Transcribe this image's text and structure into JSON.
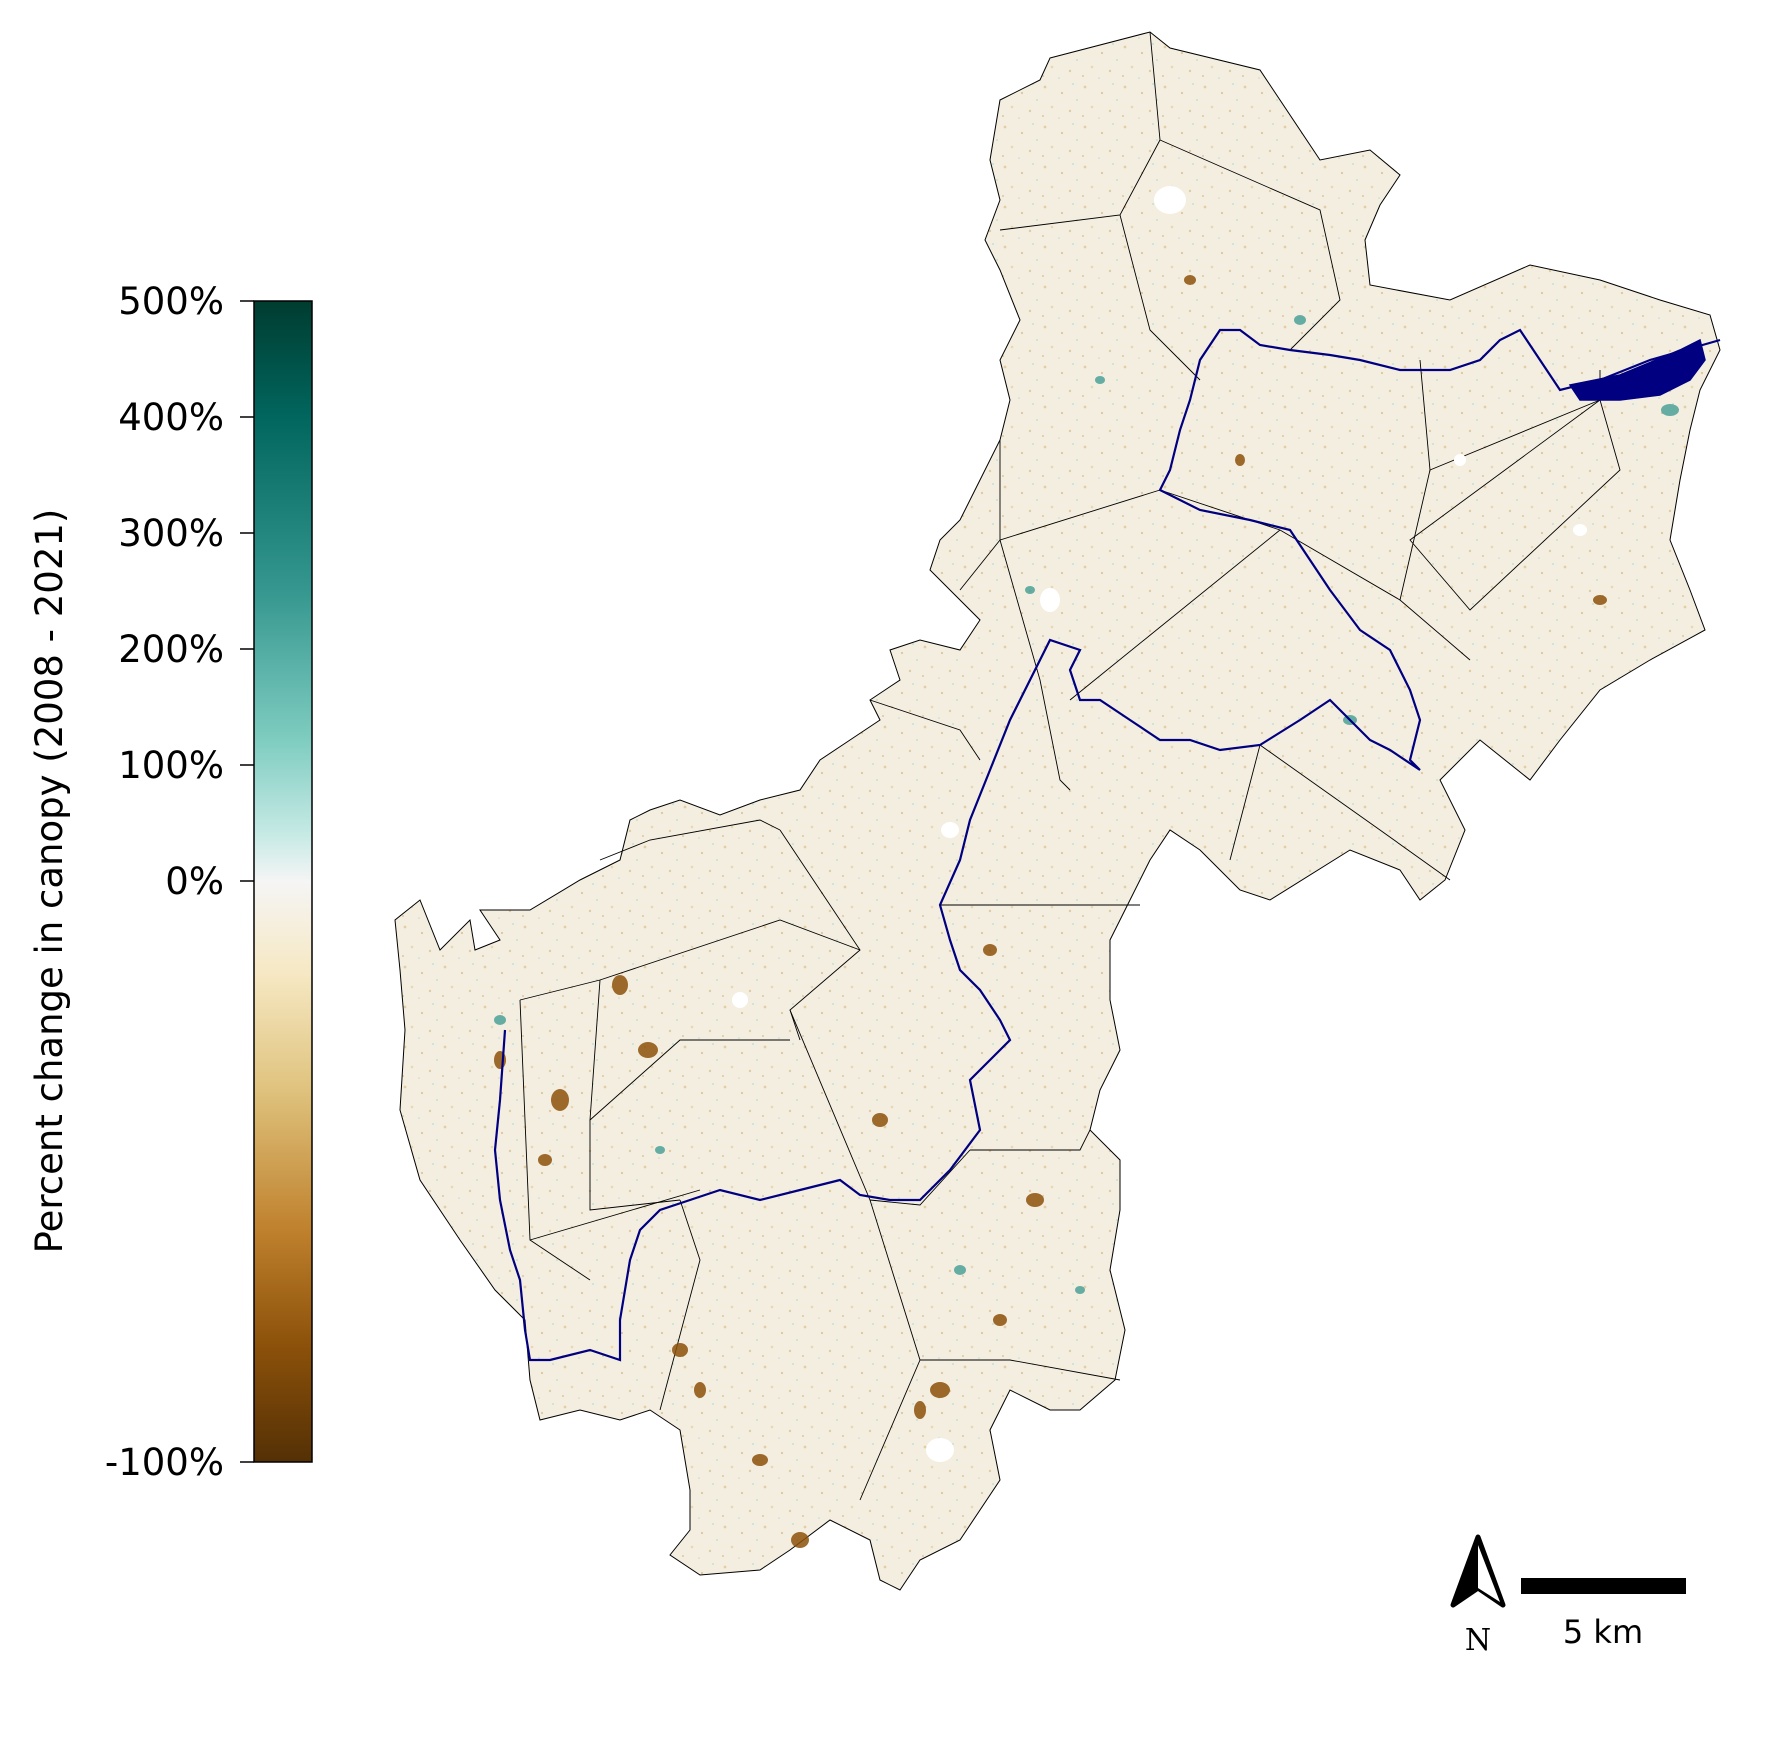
{
  "colorbar": {
    "title": "Percent change in canopy (2008 - 2021)",
    "ticks": [
      {
        "value": 500,
        "label": "500%"
      },
      {
        "value": 400,
        "label": "400%"
      },
      {
        "value": 300,
        "label": "300%"
      },
      {
        "value": 200,
        "label": "200%"
      },
      {
        "value": 100,
        "label": "100%"
      },
      {
        "value": 0,
        "label": "0%"
      },
      {
        "value": -100,
        "label": "-100%"
      }
    ],
    "range": [
      -100,
      500
    ],
    "colors": {
      "top": "#023c30",
      "upper": "#35978f",
      "light": "#c7eae5",
      "mid": "#f5f5f5",
      "tan": "#dfc27d",
      "brown": "#bf812d",
      "bottom": "#543005"
    }
  },
  "map": {
    "fill_color": "#f2ebdc",
    "boundary_color": "#000000",
    "river_color": "#000080"
  },
  "north_arrow": {
    "label": "N"
  },
  "scale_bar": {
    "label": "5 km"
  }
}
